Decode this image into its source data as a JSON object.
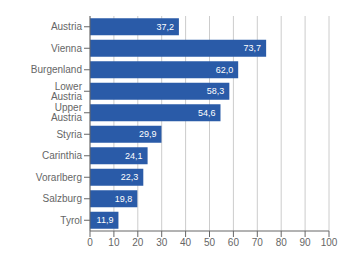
{
  "chart_data": {
    "type": "bar",
    "orientation": "horizontal",
    "categories": [
      "Austria",
      "Vienna",
      "Burgenland",
      "Lower Austria",
      "Upper Austria",
      "Styria",
      "Carinthia",
      "Vorarlberg",
      "Salzburg",
      "Tyrol"
    ],
    "values": [
      37.2,
      73.7,
      62.0,
      58.3,
      54.6,
      29.9,
      24.1,
      22.3,
      19.8,
      11.9
    ],
    "value_labels": [
      "37,2",
      "73,7",
      "62,0",
      "58,3",
      "54,6",
      "29,9",
      "24,1",
      "22,3",
      "19,8",
      "11,9"
    ],
    "color": "#2A5BA8",
    "xlim": [
      0,
      100
    ],
    "xticks": [
      0,
      10,
      20,
      30,
      40,
      50,
      60,
      70,
      80,
      90,
      100
    ],
    "grid": true,
    "data_labels": true
  }
}
